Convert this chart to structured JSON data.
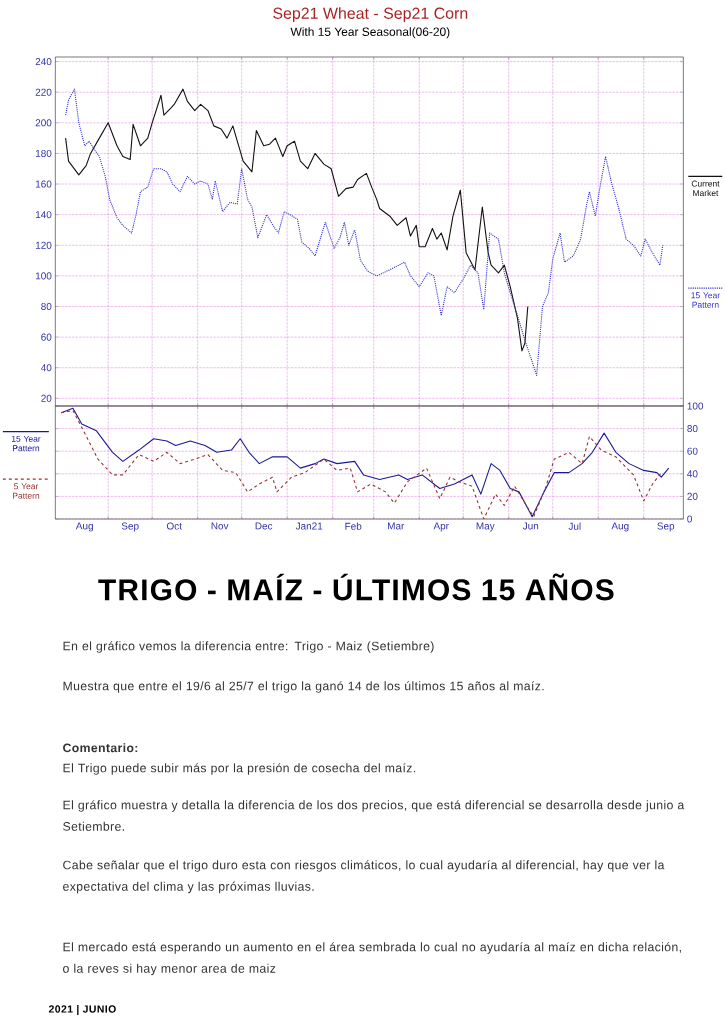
{
  "chart_data": [
    {
      "type": "line",
      "title": "Sep21 Wheat - Sep21 Corn",
      "subtitle": "With 15 Year Seasonal(06-20)",
      "xlim": [
        "2020-07-27",
        "2021-09-28"
      ],
      "ylim": [
        15,
        243
      ],
      "xticks": [
        {
          "value": "2020-09-01",
          "label": null
        },
        {
          "value": "2020-10-01",
          "label": null
        },
        {
          "value": "2020-11-01",
          "label": null
        },
        {
          "value": "2020-12-01",
          "label": null
        },
        {
          "value": "2021-01-01",
          "label": null
        },
        {
          "value": "2021-02-01",
          "label": null
        },
        {
          "value": "2021-03-01",
          "label": null
        },
        {
          "value": "2021-04-01",
          "label": null
        },
        {
          "value": "2021-05-01",
          "label": null
        },
        {
          "value": "2021-06-01",
          "label": null
        },
        {
          "value": "2021-07-01",
          "label": null
        },
        {
          "value": "2021-08-01",
          "label": null
        },
        {
          "value": "2021-09-01",
          "label": null
        }
      ],
      "yticks": [
        20,
        40,
        60,
        80,
        100,
        120,
        140,
        160,
        180,
        200,
        220,
        240
      ],
      "tick_labels": "y",
      "grid": true,
      "legend": "right",
      "series": [
        {
          "name": "Current Market",
          "color": "#111111",
          "line_style": "solid",
          "x": [
            "2020-08-03",
            "2020-08-05",
            "2020-08-12",
            "2020-08-17",
            "2020-08-20",
            "2020-08-26",
            "2020-09-01",
            "2020-09-07",
            "2020-09-11",
            "2020-09-16",
            "2020-09-18",
            "2020-09-23",
            "2020-09-28",
            "2020-10-01",
            "2020-10-07",
            "2020-10-09",
            "2020-10-14",
            "2020-10-16",
            "2020-10-22",
            "2020-10-25",
            "2020-10-30",
            "2020-11-03",
            "2020-11-08",
            "2020-11-12",
            "2020-11-17",
            "2020-11-21",
            "2020-11-25",
            "2020-11-28",
            "2020-12-02",
            "2020-12-08",
            "2020-12-11",
            "2020-12-16",
            "2020-12-20",
            "2020-12-24",
            "2020-12-29",
            "2021-01-01",
            "2021-01-06",
            "2021-01-10",
            "2021-01-15",
            "2021-01-20",
            "2021-01-26",
            "2021-01-31",
            "2021-02-05",
            "2021-02-10",
            "2021-02-15",
            "2021-02-18",
            "2021-02-24",
            "2021-02-28",
            "2021-03-03",
            "2021-03-05",
            "2021-03-12",
            "2021-03-17",
            "2021-03-23",
            "2021-03-26",
            "2021-03-30",
            "2021-04-01",
            "2021-04-05",
            "2021-04-10",
            "2021-04-13",
            "2021-04-16",
            "2021-04-20",
            "2021-04-24",
            "2021-04-29",
            "2021-05-03",
            "2021-05-09",
            "2021-05-14",
            "2021-05-18",
            "2021-05-20",
            "2021-05-25",
            "2021-05-29",
            "2021-06-02",
            "2021-06-07",
            "2021-06-10",
            "2021-06-12",
            "2021-06-14"
          ],
          "values": [
            190,
            175,
            166,
            172,
            180,
            190,
            200,
            185,
            178,
            176,
            199,
            185,
            190,
            200,
            218,
            205,
            210,
            212,
            222,
            214,
            208,
            212,
            208,
            198,
            196,
            190,
            198,
            188,
            175,
            168,
            195,
            185,
            186,
            190,
            178,
            185,
            188,
            175,
            170,
            180,
            173,
            170,
            152,
            157,
            158,
            163,
            167,
            157,
            150,
            144,
            139,
            133,
            138,
            126,
            133,
            119,
            119,
            131,
            124,
            128,
            117,
            139,
            156,
            115,
            104,
            145,
            115,
            107,
            102,
            107,
            93,
            72,
            51,
            56,
            80
          ]
        },
        {
          "name": "15 Year Pattern",
          "color": "#3333cc",
          "line_style": "dotted",
          "x": [
            "2020-08-03",
            "2020-08-05",
            "2020-08-09",
            "2020-08-12",
            "2020-08-16",
            "2020-08-19",
            "2020-08-23",
            "2020-08-26",
            "2020-08-30",
            "2020-09-02",
            "2020-09-07",
            "2020-09-11",
            "2020-09-17",
            "2020-09-20",
            "2020-09-23",
            "2020-09-28",
            "2020-10-02",
            "2020-10-07",
            "2020-10-11",
            "2020-10-15",
            "2020-10-20",
            "2020-10-25",
            "2020-10-30",
            "2020-11-03",
            "2020-11-08",
            "2020-11-11",
            "2020-11-13",
            "2020-11-18",
            "2020-11-23",
            "2020-11-28",
            "2020-12-01",
            "2020-12-05",
            "2020-12-08",
            "2020-12-12",
            "2020-12-18",
            "2020-12-23",
            "2020-12-26",
            "2020-12-30",
            "2021-01-03",
            "2021-01-08",
            "2021-01-11",
            "2021-01-16",
            "2021-01-20",
            "2021-01-27",
            "2021-02-02",
            "2021-02-06",
            "2021-02-09",
            "2021-02-12",
            "2021-02-16",
            "2021-02-20",
            "2021-02-25",
            "2021-03-03",
            "2021-03-12",
            "2021-03-22",
            "2021-03-26",
            "2021-04-01",
            "2021-04-07",
            "2021-04-11",
            "2021-04-16",
            "2021-04-20",
            "2021-04-25",
            "2021-05-01",
            "2021-05-06",
            "2021-05-11",
            "2021-05-15",
            "2021-05-19",
            "2021-05-25",
            "2021-05-29",
            "2021-06-02",
            "2021-06-07",
            "2021-06-12",
            "2021-06-18",
            "2021-06-20",
            "2021-06-24",
            "2021-06-28",
            "2021-07-01",
            "2021-07-06",
            "2021-07-09",
            "2021-07-15",
            "2021-07-20",
            "2021-07-24",
            "2021-07-26",
            "2021-07-30",
            "2021-08-02",
            "2021-08-06",
            "2021-08-10",
            "2021-08-15",
            "2021-08-20",
            "2021-08-25",
            "2021-08-30",
            "2021-09-02",
            "2021-09-07",
            "2021-09-12",
            "2021-09-14"
          ],
          "values": [
            205,
            215,
            222,
            200,
            185,
            188,
            182,
            178,
            165,
            150,
            138,
            133,
            128,
            140,
            155,
            158,
            170,
            170,
            168,
            160,
            155,
            165,
            160,
            162,
            160,
            150,
            162,
            142,
            148,
            147,
            170,
            150,
            145,
            125,
            140,
            132,
            128,
            142,
            140,
            137,
            122,
            118,
            113,
            135,
            118,
            125,
            135,
            120,
            130,
            110,
            103,
            100,
            104,
            109,
            100,
            93,
            102,
            100,
            74,
            93,
            89,
            98,
            107,
            102,
            78,
            128,
            124,
            102,
            89,
            74,
            58,
            41,
            35,
            80,
            89,
            111,
            128,
            109,
            113,
            124,
            146,
            155,
            139,
            157,
            178,
            161,
            144,
            124,
            120,
            113,
            124,
            115,
            107,
            120
          ]
        }
      ]
    },
    {
      "type": "line",
      "xlim": [
        "2020-07-27",
        "2021-09-28"
      ],
      "y2lim": [
        0,
        100
      ],
      "xticks": [
        {
          "value": "2020-08-16",
          "label": "Aug"
        },
        {
          "value": "2020-09-01",
          "label": null
        },
        {
          "value": "2020-09-16",
          "label": "Sep"
        },
        {
          "value": "2020-10-01",
          "label": null
        },
        {
          "value": "2020-10-16",
          "label": "Oct"
        },
        {
          "value": "2020-11-01",
          "label": null
        },
        {
          "value": "2020-11-16",
          "label": "Nov"
        },
        {
          "value": "2020-12-01",
          "label": null
        },
        {
          "value": "2020-12-16",
          "label": "Dec"
        },
        {
          "value": "2021-01-01",
          "label": null
        },
        {
          "value": "2021-01-16",
          "label": "Jan21"
        },
        {
          "value": "2021-02-01",
          "label": null
        },
        {
          "value": "2021-02-15",
          "label": "Feb"
        },
        {
          "value": "2021-03-01",
          "label": null
        },
        {
          "value": "2021-03-16",
          "label": "Mar"
        },
        {
          "value": "2021-04-01",
          "label": null
        },
        {
          "value": "2021-04-16",
          "label": "Apr"
        },
        {
          "value": "2021-05-01",
          "label": null
        },
        {
          "value": "2021-05-16",
          "label": "May"
        },
        {
          "value": "2021-06-01",
          "label": null
        },
        {
          "value": "2021-06-16",
          "label": "Jun"
        },
        {
          "value": "2021-07-01",
          "label": null
        },
        {
          "value": "2021-07-16",
          "label": "Jul"
        },
        {
          "value": "2021-08-01",
          "label": null
        },
        {
          "value": "2021-08-16",
          "label": "Aug"
        },
        {
          "value": "2021-09-01",
          "label": null
        },
        {
          "value": "2021-09-16",
          "label": "Sep"
        }
      ],
      "y2ticks": [
        0,
        20,
        40,
        60,
        80,
        100
      ],
      "grid": true,
      "legend": "left",
      "series": [
        {
          "name": "15 Year Pattern",
          "color": "#1a1a99",
          "line_style": "solid",
          "axis": "y2",
          "x": [
            "2020-07-31",
            "2020-08-08",
            "2020-08-14",
            "2020-08-24",
            "2020-09-04",
            "2020-09-11",
            "2020-09-22",
            "2020-10-02",
            "2020-10-11",
            "2020-10-17",
            "2020-10-27",
            "2020-11-06",
            "2020-11-14",
            "2020-11-24",
            "2020-11-30",
            "2020-12-06",
            "2020-12-13",
            "2020-12-22",
            "2021-01-01",
            "2021-01-10",
            "2021-01-20",
            "2021-01-26",
            "2021-02-04",
            "2021-02-16",
            "2021-02-22",
            "2021-03-05",
            "2021-03-18",
            "2021-03-24",
            "2021-04-03",
            "2021-04-15",
            "2021-04-25",
            "2021-05-07",
            "2021-05-13",
            "2021-05-20",
            "2021-05-26",
            "2021-06-02",
            "2021-06-08",
            "2021-06-17",
            "2021-06-25",
            "2021-07-02",
            "2021-07-12",
            "2021-07-21",
            "2021-07-28",
            "2021-08-05",
            "2021-08-13",
            "2021-08-22",
            "2021-09-01",
            "2021-09-10",
            "2021-09-13",
            "2021-09-18"
          ],
          "values": [
            94,
            98,
            84,
            78,
            59,
            51,
            61,
            71,
            69,
            65,
            69,
            65,
            59,
            61,
            71,
            59,
            49,
            55,
            55,
            45,
            49,
            53,
            49,
            51,
            39,
            35,
            39,
            35,
            39,
            27,
            31,
            39,
            22,
            49,
            43,
            27,
            24,
            2,
            24,
            41,
            41,
            49,
            59,
            76,
            59,
            49,
            43,
            41,
            37,
            45
          ]
        },
        {
          "name": "5 Year Pattern",
          "color": "#993333",
          "line_style": "dashed",
          "axis": "y2",
          "x": [
            "2020-07-31",
            "2020-08-08",
            "2020-08-16",
            "2020-08-25",
            "2020-09-04",
            "2020-09-11",
            "2020-09-22",
            "2020-10-02",
            "2020-10-11",
            "2020-10-20",
            "2020-10-30",
            "2020-11-08",
            "2020-11-18",
            "2020-11-27",
            "2020-12-05",
            "2020-12-13",
            "2020-12-22",
            "2020-12-25",
            "2021-01-04",
            "2021-01-13",
            "2021-01-26",
            "2021-02-04",
            "2021-02-13",
            "2021-02-18",
            "2021-02-27",
            "2021-03-09",
            "2021-03-15",
            "2021-03-24",
            "2021-04-06",
            "2021-04-15",
            "2021-04-22",
            "2021-04-28",
            "2021-05-07",
            "2021-05-15",
            "2021-05-23",
            "2021-05-29",
            "2021-06-05",
            "2021-06-14",
            "2021-06-18",
            "2021-06-26",
            "2021-07-02",
            "2021-07-12",
            "2021-07-21",
            "2021-07-26",
            "2021-08-03",
            "2021-08-13",
            "2021-08-25",
            "2021-09-01",
            "2021-09-07",
            "2021-09-13"
          ],
          "values": [
            94,
            96,
            76,
            53,
            39,
            39,
            57,
            51,
            59,
            49,
            53,
            57,
            43,
            41,
            24,
            31,
            37,
            24,
            37,
            41,
            53,
            43,
            45,
            24,
            31,
            24,
            14,
            33,
            45,
            18,
            37,
            33,
            29,
            0,
            22,
            12,
            29,
            10,
            2,
            27,
            53,
            59,
            49,
            73,
            61,
            55,
            39,
            16,
            31,
            41
          ]
        }
      ],
      "annotations": [
        "TRIGO - MAÍZ - ÚLTIMOS 15 AÑOS",
        "En el gráfico vemos la diferencia entre: Trigo - Maiz (Setiembre)",
        "Muestra que entre el 19/6 al 25/7 el trigo la ganó 14 de los últimos 15 años al maíz.",
        "Comentario:",
        "El Trigo puede subir más por la presión de cosecha del maíz.",
        "El gráfico muestra y detalla la diferencia de los dos precios, que está diferencial se desarrolla desde junio a Setiembre.",
        "Cabe señalar que el trigo duro esta con riesgos climáticos, lo cual ayudaría al diferencial, hay que ver la expectativa del clima y las próximas lluvias.",
        "El mercado está esperando un aumento en el área sembrada lo cual no ayudaría al maíz en dicha relación, o la reves si hay menor area de maiz",
        "2021 | JUNIO"
      ]
    }
  ]
}
